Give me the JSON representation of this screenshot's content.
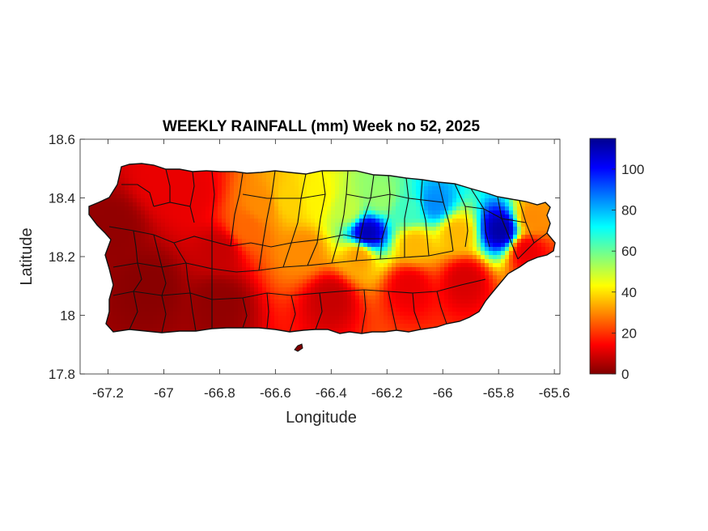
{
  "chart_data": {
    "type": "heatmap",
    "title": "WEEKLY RAINFALL (mm) Week no 52, 2025",
    "xlabel": "Longitude",
    "ylabel": "Latitude",
    "xlim": [
      -67.3,
      -65.58
    ],
    "ylim": [
      17.8,
      18.6
    ],
    "xticks": [
      -67.2,
      -67,
      -66.8,
      -66.6,
      -66.4,
      -66.2,
      -66,
      -65.8,
      -65.6
    ],
    "xtick_labels": [
      "-67.2",
      "-67",
      "-66.8",
      "-66.6",
      "-66.4",
      "-66.2",
      "-66",
      "-65.8",
      "-65.6"
    ],
    "yticks": [
      18.6,
      18.4,
      18.2,
      18.0,
      17.8
    ],
    "ytick_labels": [
      "18.6",
      "18.4",
      "18.2",
      "18",
      "17.8"
    ],
    "colorbar": {
      "colormap": "jet",
      "range": [
        0,
        115
      ],
      "ticks": [
        0,
        20,
        40,
        60,
        80,
        100
      ],
      "tick_labels": [
        "0",
        "20",
        "40",
        "60",
        "80",
        "100"
      ],
      "units": "mm"
    },
    "rainfall_peaks_mm": [
      {
        "lon": -66.27,
        "lat": 18.28,
        "value": 110
      },
      {
        "lon": -65.79,
        "lat": 18.29,
        "value": 112
      },
      {
        "lon": -66.03,
        "lat": 18.38,
        "value": 85
      },
      {
        "lon": -66.12,
        "lat": 18.36,
        "value": 65
      },
      {
        "lon": -66.22,
        "lat": 18.4,
        "value": 55
      },
      {
        "lon": -66.34,
        "lat": 18.36,
        "value": 50
      },
      {
        "lon": -66.45,
        "lat": 18.4,
        "value": 42
      },
      {
        "lon": -66.55,
        "lat": 18.39,
        "value": 38
      },
      {
        "lon": -66.65,
        "lat": 18.37,
        "value": 30
      },
      {
        "lon": -66.7,
        "lat": 18.3,
        "value": 26
      },
      {
        "lon": -65.95,
        "lat": 18.28,
        "value": 35
      },
      {
        "lon": -66.1,
        "lat": 18.24,
        "value": 35
      },
      {
        "lon": -66.3,
        "lat": 18.2,
        "value": 32
      },
      {
        "lon": -66.5,
        "lat": 18.22,
        "value": 30
      },
      {
        "lon": -65.68,
        "lat": 18.33,
        "value": 30
      },
      {
        "lon": -65.7,
        "lat": 18.22,
        "value": 12
      },
      {
        "lon": -65.92,
        "lat": 18.12,
        "value": 10
      },
      {
        "lon": -66.12,
        "lat": 18.1,
        "value": 12
      },
      {
        "lon": -66.4,
        "lat": 18.06,
        "value": 8
      },
      {
        "lon": -66.8,
        "lat": 18.05,
        "value": 2
      },
      {
        "lon": -67.05,
        "lat": 18.1,
        "value": 1
      },
      {
        "lon": -67.18,
        "lat": 18.3,
        "value": 2
      },
      {
        "lon": -67.0,
        "lat": 18.46,
        "value": 12
      },
      {
        "lon": -66.9,
        "lat": 18.42,
        "value": 12
      },
      {
        "lon": -66.8,
        "lat": 18.22,
        "value": 8
      }
    ]
  }
}
